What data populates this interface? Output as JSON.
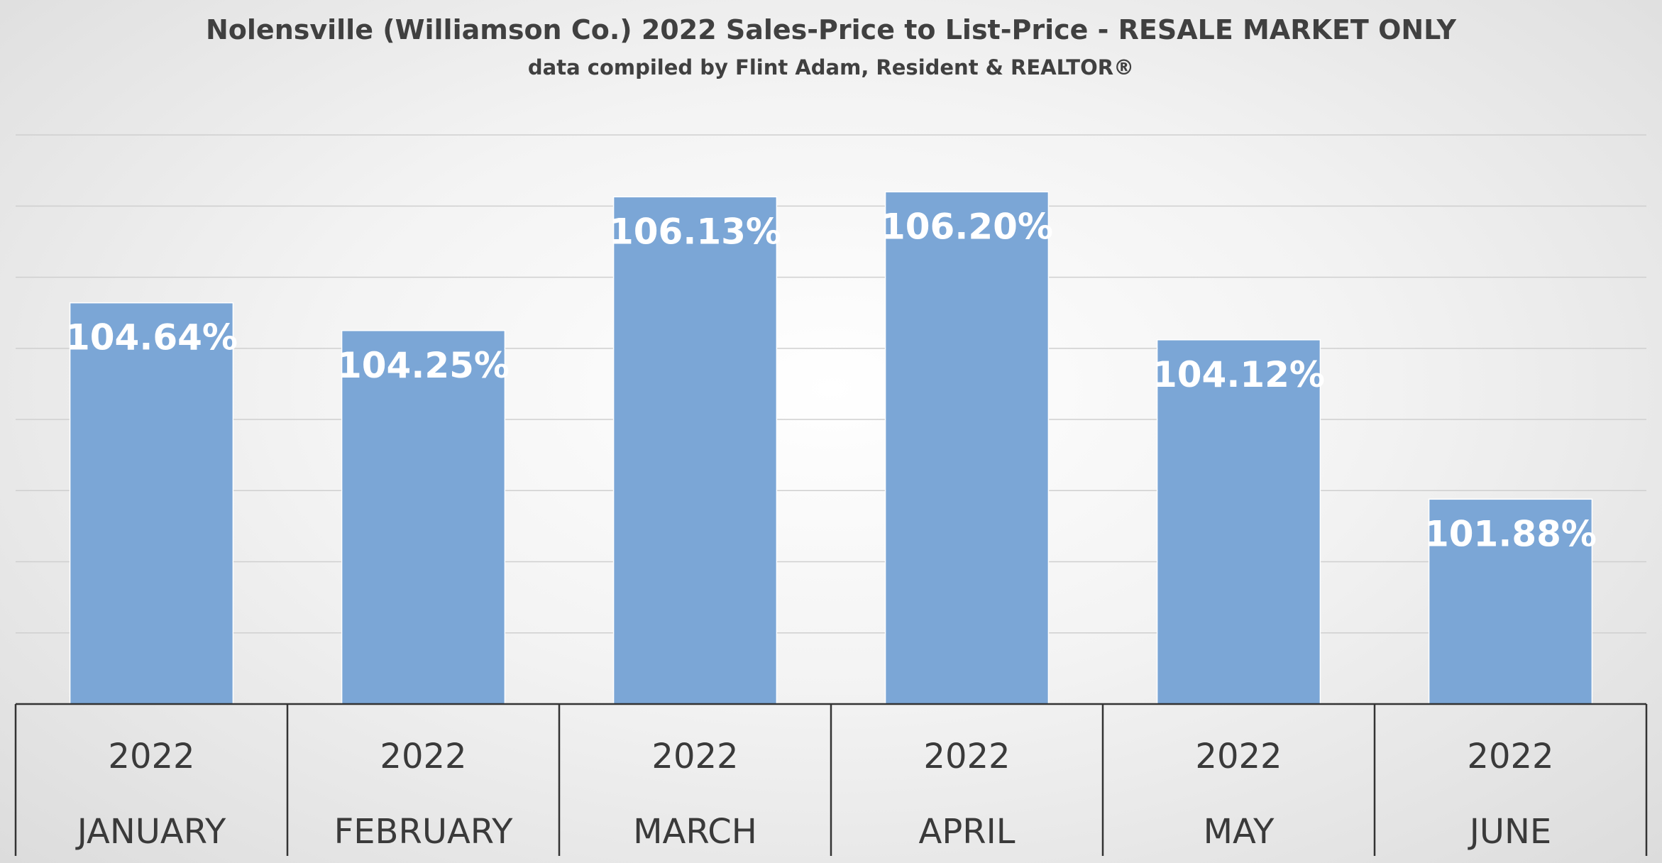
{
  "chart_data": {
    "type": "bar",
    "title": "Nolensville (Williamson Co.) 2022 Sales-Price to List-Price - RESALE MARKET ONLY",
    "subtitle": "data compiled by Flint Adam, Resident & REALTOR®",
    "categories": [
      {
        "year": "2022",
        "month": "JANUARY"
      },
      {
        "year": "2022",
        "month": "FEBRUARY"
      },
      {
        "year": "2022",
        "month": "MARCH"
      },
      {
        "year": "2022",
        "month": "APRIL"
      },
      {
        "year": "2022",
        "month": "MAY"
      },
      {
        "year": "2022",
        "month": "JUNE"
      }
    ],
    "values": [
      104.64,
      104.25,
      106.13,
      106.2,
      104.12,
      101.88
    ],
    "data_labels": [
      "104.64%",
      "104.25%",
      "106.13%",
      "106.20%",
      "104.12%",
      "101.88%"
    ],
    "xlabel": "",
    "ylabel": "",
    "ylim": [
      99,
      107.5
    ],
    "gridline_step": 1,
    "grid": true,
    "legend": "none",
    "bar_color": "#7ba6d6",
    "bar_edge_color": "#ffffff",
    "gridline_color": "#cfcfcf",
    "category_table_border": "#333333"
  }
}
